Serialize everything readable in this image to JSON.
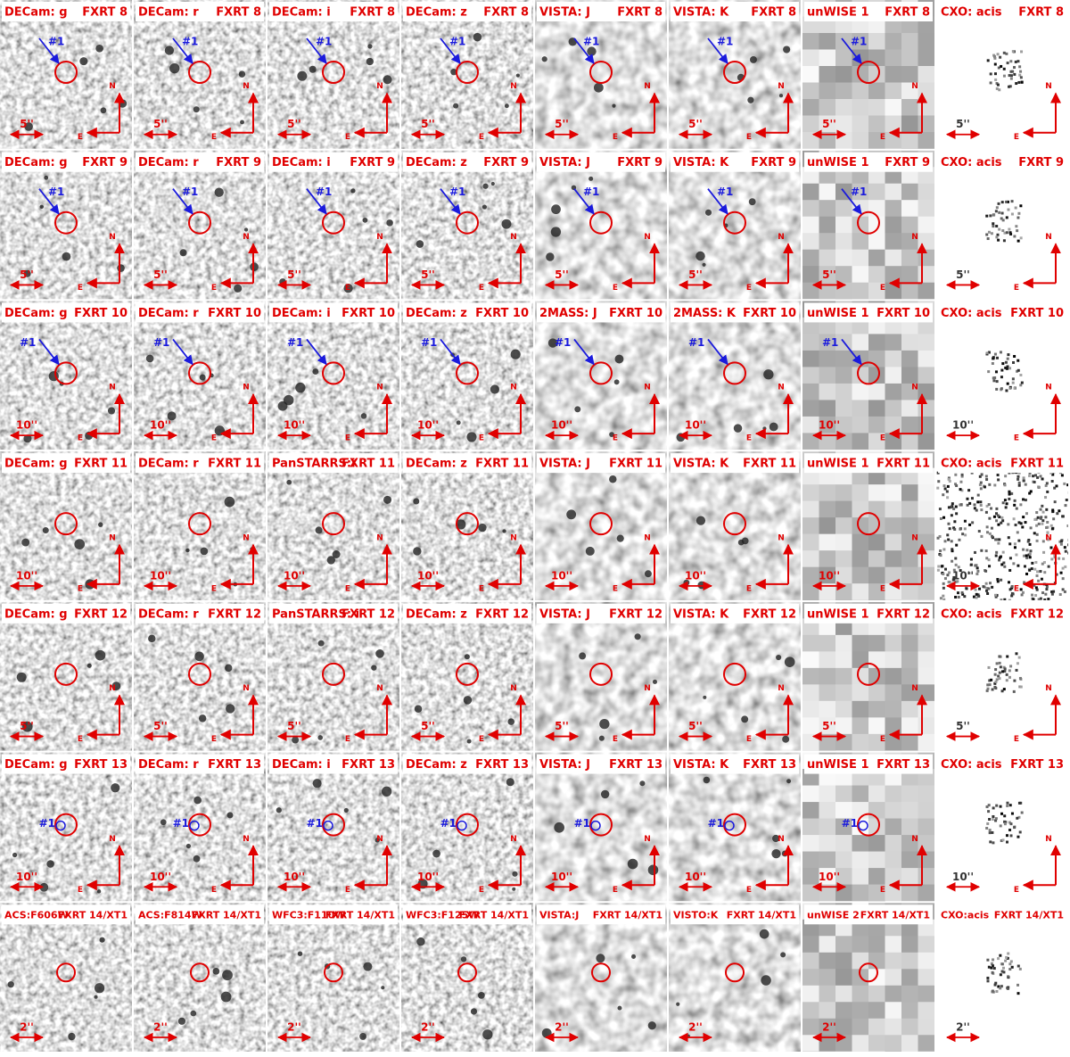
{
  "rows": [
    {
      "panels": [
        {
          "band": "DECam: g",
          "source": "FXRT 8",
          "scale": "5''",
          "north": "N",
          "east": "E",
          "marker": "#1"
        },
        {
          "band": "DECam: r",
          "source": "FXRT 8",
          "scale": "5''",
          "north": "N",
          "east": "E",
          "marker": "#1"
        },
        {
          "band": "DECam: i",
          "source": "FXRT 8",
          "scale": "5''",
          "north": "N",
          "east": "E",
          "marker": "#1"
        },
        {
          "band": "DECam: z",
          "source": "FXRT 8",
          "scale": "5''",
          "north": "N",
          "east": "E",
          "marker": "#1"
        },
        {
          "band": "VISTA: J",
          "source": "FXRT 8",
          "scale": "5''",
          "north": "N",
          "east": "E",
          "marker": "#1"
        },
        {
          "band": "VISTA: K",
          "source": "FXRT 8",
          "scale": "5''",
          "north": "N",
          "east": "E",
          "marker": "#1"
        },
        {
          "band": "unWISE 1",
          "source": "FXRT 8",
          "scale": "5''",
          "north": "N",
          "east": "E",
          "marker": "#1"
        },
        {
          "band": "CXO: acis",
          "source": "FXRT 8",
          "scale": "5''",
          "north": "N",
          "east": "E"
        }
      ]
    },
    {
      "panels": [
        {
          "band": "DECam: g",
          "source": "FXRT 9",
          "scale": "5''",
          "north": "N",
          "east": "E",
          "marker": "#1"
        },
        {
          "band": "DECam: r",
          "source": "FXRT 9",
          "scale": "5''",
          "north": "N",
          "east": "E",
          "marker": "#1"
        },
        {
          "band": "DECam: i",
          "source": "FXRT 9",
          "scale": "5''",
          "north": "N",
          "east": "E",
          "marker": "#1"
        },
        {
          "band": "DECam: z",
          "source": "FXRT 9",
          "scale": "5''",
          "north": "N",
          "east": "E",
          "marker": "#1"
        },
        {
          "band": "VISTA: J",
          "source": "FXRT 9",
          "scale": "5''",
          "north": "N",
          "east": "E",
          "marker": "#1"
        },
        {
          "band": "VISTA: K",
          "source": "FXRT 9",
          "scale": "5''",
          "north": "N",
          "east": "E",
          "marker": "#1"
        },
        {
          "band": "unWISE 1",
          "source": "FXRT 9",
          "scale": "5''",
          "north": "N",
          "east": "E",
          "marker": "#1"
        },
        {
          "band": "CXO: acis",
          "source": "FXRT 9",
          "scale": "5''",
          "north": "N",
          "east": "E"
        }
      ]
    },
    {
      "panels": [
        {
          "band": "DECam: g",
          "source": "FXRT 10",
          "scale": "10''",
          "north": "N",
          "east": "E",
          "marker": "#1"
        },
        {
          "band": "DECam: r",
          "source": "FXRT 10",
          "scale": "10''",
          "north": "N",
          "east": "E",
          "marker": "#1"
        },
        {
          "band": "DECam: i",
          "source": "FXRT 10",
          "scale": "10''",
          "north": "N",
          "east": "E",
          "marker": "#1"
        },
        {
          "band": "DECam: z",
          "source": "FXRT 10",
          "scale": "10''",
          "north": "N",
          "east": "E",
          "marker": "#1"
        },
        {
          "band": "2MASS: J",
          "source": "FXRT 10",
          "scale": "10''",
          "north": "N",
          "east": "E",
          "marker": "#1"
        },
        {
          "band": "2MASS: K",
          "source": "FXRT 10",
          "scale": "10''",
          "north": "N",
          "east": "E",
          "marker": "#1"
        },
        {
          "band": "unWISE 1",
          "source": "FXRT 10",
          "scale": "10''",
          "north": "N",
          "east": "E",
          "marker": "#1"
        },
        {
          "band": "CXO: acis",
          "source": "FXRT 10",
          "scale": "10''",
          "north": "N",
          "east": "E"
        }
      ]
    },
    {
      "panels": [
        {
          "band": "DECam: g",
          "source": "FXRT 11",
          "scale": "10''",
          "north": "N",
          "east": "E"
        },
        {
          "band": "DECam: r",
          "source": "FXRT 11",
          "scale": "10''",
          "north": "N",
          "east": "E"
        },
        {
          "band": "PanSTARRS:i",
          "source": "FXRT 11",
          "scale": "10''",
          "north": "N",
          "east": "E"
        },
        {
          "band": "DECam: z",
          "source": "FXRT 11",
          "scale": "10''",
          "north": "N",
          "east": "E"
        },
        {
          "band": "VISTA: J",
          "source": "FXRT 11",
          "scale": "10''",
          "north": "N",
          "east": "E"
        },
        {
          "band": "VISTA: K",
          "source": "FXRT 11",
          "scale": "10''",
          "north": "N",
          "east": "E"
        },
        {
          "band": "unWISE 1",
          "source": "FXRT 11",
          "scale": "10''",
          "north": "N",
          "east": "E"
        },
        {
          "band": "CXO: acis",
          "source": "FXRT 11",
          "scale": "10''",
          "north": "N",
          "east": "E"
        }
      ]
    },
    {
      "panels": [
        {
          "band": "DECam: g",
          "source": "FXRT 12",
          "scale": "5''",
          "north": "N",
          "east": "E"
        },
        {
          "band": "DECam: r",
          "source": "FXRT 12",
          "scale": "5''",
          "north": "N",
          "east": "E"
        },
        {
          "band": "PanSTARRS: i",
          "source": "FXRT 12",
          "scale": "5''",
          "north": "N",
          "east": "E"
        },
        {
          "band": "DECam: z",
          "source": "FXRT 12",
          "scale": "5''",
          "north": "N",
          "east": "E"
        },
        {
          "band": "VISTA: J",
          "source": "FXRT 12",
          "scale": "5''",
          "north": "N",
          "east": "E"
        },
        {
          "band": "VISTA: K",
          "source": "FXRT 12",
          "scale": "5''",
          "north": "N",
          "east": "E"
        },
        {
          "band": "unWISE 1",
          "source": "FXRT 12",
          "scale": "5''",
          "north": "N",
          "east": "E"
        },
        {
          "band": "CXO: acis",
          "source": "FXRT 12",
          "scale": "5''",
          "north": "N",
          "east": "E"
        }
      ]
    },
    {
      "panels": [
        {
          "band": "DECam: g",
          "source": "FXRT 13",
          "scale": "10''",
          "north": "N",
          "east": "E",
          "marker": "#1"
        },
        {
          "band": "DECam: r",
          "source": "FXRT 13",
          "scale": "10''",
          "north": "N",
          "east": "E",
          "marker": "#1"
        },
        {
          "band": "DECam: i",
          "source": "FXRT 13",
          "scale": "10''",
          "north": "N",
          "east": "E",
          "marker": "#1"
        },
        {
          "band": "DECam: z",
          "source": "FXRT 13",
          "scale": "10''",
          "north": "N",
          "east": "E",
          "marker": "#1"
        },
        {
          "band": "VISTA: J",
          "source": "FXRT 13",
          "scale": "10''",
          "north": "N",
          "east": "E",
          "marker": "#1"
        },
        {
          "band": "VISTA: K",
          "source": "FXRT 13",
          "scale": "10''",
          "north": "N",
          "east": "E",
          "marker": "#1"
        },
        {
          "band": "unWISE 1",
          "source": "FXRT 13",
          "scale": "10''",
          "north": "N",
          "east": "E",
          "marker": "#1"
        },
        {
          "band": "CXO: acis",
          "source": "FXRT 13",
          "scale": "10''",
          "north": "N",
          "east": "E"
        }
      ]
    },
    {
      "panels": [
        {
          "band": "ACS:F606W",
          "source": "FXRT 14/XT1",
          "scale": "2''"
        },
        {
          "band": "ACS:F814W",
          "source": "FXRT 14/XT1",
          "scale": "2''"
        },
        {
          "band": "WFC3:F110W",
          "source": "FXRT 14/XT1",
          "scale": "2''"
        },
        {
          "band": "WFC3:F125W",
          "source": "FXRT 14/XT1",
          "scale": "2''"
        },
        {
          "band": "VISTA:J",
          "source": "FXRT 14/XT1",
          "scale": "2''"
        },
        {
          "band": "VISTO:K",
          "source": "FXRT 14/XT1",
          "scale": "2''"
        },
        {
          "band": "unWISE 2",
          "source": "FXRT 14/XT1",
          "scale": "2''"
        },
        {
          "band": "CXO:acis",
          "source": "FXRT 14/XT1",
          "scale": "2''"
        }
      ]
    }
  ]
}
